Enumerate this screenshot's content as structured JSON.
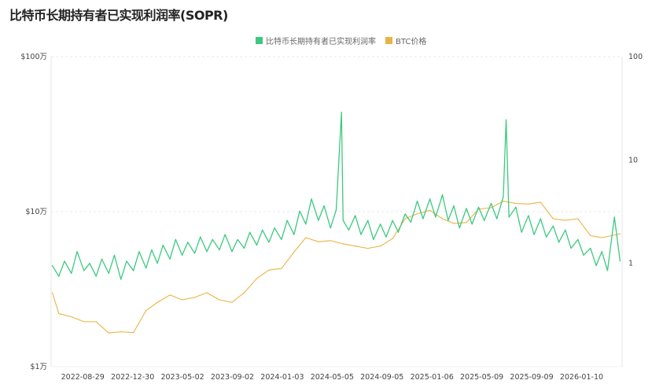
{
  "title": "比特币长期持有者已实现利润率(SOPR)",
  "legend": [
    {
      "label": "比特币长期持有者已实现利润率",
      "color": "#3cc97f"
    },
    {
      "label": "BTC价格",
      "color": "#e9b444"
    }
  ],
  "chart_data": {
    "type": "line",
    "title": "比特币长期持有者已实现利润率(SOPR)",
    "xlim": [
      "2022-06-12",
      "2026-04-20"
    ],
    "x_ticks": [
      "2022-08-29",
      "2022-12-30",
      "2023-05-02",
      "2023-09-02",
      "2024-01-03",
      "2024-05-05",
      "2024-09-05",
      "2025-01-06",
      "2025-05-09",
      "2025-09-09",
      "2026-01-10"
    ],
    "y_left": {
      "scale": "log",
      "range": [
        10000,
        1000000
      ],
      "ticks": [
        {
          "value": 1000000,
          "label": "$100万"
        },
        {
          "value": 100000,
          "label": "$10万"
        },
        {
          "value": 10000,
          "label": "$1万"
        }
      ]
    },
    "y_right": {
      "scale": "log",
      "range": [
        0.1,
        100
      ],
      "ticks": [
        {
          "value": 100,
          "label": "100"
        },
        {
          "value": 10,
          "label": "10"
        },
        {
          "value": 1,
          "label": "1"
        }
      ]
    },
    "grid": "horizontal dashed",
    "legend_position": "top-center",
    "series": [
      {
        "name": "比特币长期持有者已实现利润率",
        "axis": "right",
        "color": "#3cc97f",
        "points": [
          [
            "2022-06-15",
            0.95
          ],
          [
            "2022-07-01",
            0.75
          ],
          [
            "2022-07-15",
            1.05
          ],
          [
            "2022-08-01",
            0.8
          ],
          [
            "2022-08-15",
            1.3
          ],
          [
            "2022-09-01",
            0.85
          ],
          [
            "2022-09-15",
            1.0
          ],
          [
            "2022-10-01",
            0.75
          ],
          [
            "2022-10-15",
            1.1
          ],
          [
            "2022-11-01",
            0.8
          ],
          [
            "2022-11-15",
            1.2
          ],
          [
            "2022-12-01",
            0.7
          ],
          [
            "2022-12-15",
            1.05
          ],
          [
            "2023-01-01",
            0.85
          ],
          [
            "2023-01-15",
            1.3
          ],
          [
            "2023-02-01",
            0.9
          ],
          [
            "2023-02-15",
            1.35
          ],
          [
            "2023-03-01",
            1.0
          ],
          [
            "2023-03-15",
            1.5
          ],
          [
            "2023-04-01",
            1.1
          ],
          [
            "2023-04-15",
            1.7
          ],
          [
            "2023-05-01",
            1.2
          ],
          [
            "2023-05-15",
            1.6
          ],
          [
            "2023-06-01",
            1.25
          ],
          [
            "2023-06-15",
            1.8
          ],
          [
            "2023-07-01",
            1.3
          ],
          [
            "2023-07-15",
            1.7
          ],
          [
            "2023-08-01",
            1.35
          ],
          [
            "2023-08-15",
            1.9
          ],
          [
            "2023-09-01",
            1.3
          ],
          [
            "2023-09-15",
            1.7
          ],
          [
            "2023-10-01",
            1.4
          ],
          [
            "2023-10-15",
            2.0
          ],
          [
            "2023-11-01",
            1.5
          ],
          [
            "2023-11-15",
            2.1
          ],
          [
            "2023-12-01",
            1.6
          ],
          [
            "2023-12-15",
            2.2
          ],
          [
            "2024-01-01",
            1.7
          ],
          [
            "2024-01-15",
            2.6
          ],
          [
            "2024-02-01",
            1.9
          ],
          [
            "2024-02-15",
            3.2
          ],
          [
            "2024-03-01",
            2.4
          ],
          [
            "2024-03-15",
            4.2
          ],
          [
            "2024-04-01",
            2.6
          ],
          [
            "2024-04-15",
            3.6
          ],
          [
            "2024-05-01",
            2.2
          ],
          [
            "2024-05-15",
            3.3
          ],
          [
            "2024-05-28",
            29
          ],
          [
            "2024-06-01",
            2.6
          ],
          [
            "2024-06-15",
            2.1
          ],
          [
            "2024-07-01",
            2.9
          ],
          [
            "2024-07-15",
            1.9
          ],
          [
            "2024-08-01",
            2.6
          ],
          [
            "2024-08-15",
            1.7
          ],
          [
            "2024-09-01",
            2.4
          ],
          [
            "2024-09-15",
            1.8
          ],
          [
            "2024-10-01",
            2.6
          ],
          [
            "2024-10-15",
            2.0
          ],
          [
            "2024-11-01",
            3.0
          ],
          [
            "2024-11-15",
            2.5
          ],
          [
            "2024-12-01",
            4.0
          ],
          [
            "2024-12-15",
            2.7
          ],
          [
            "2025-01-01",
            4.2
          ],
          [
            "2025-01-15",
            2.8
          ],
          [
            "2025-02-01",
            4.6
          ],
          [
            "2025-02-15",
            2.6
          ],
          [
            "2025-03-01",
            3.6
          ],
          [
            "2025-03-15",
            2.2
          ],
          [
            "2025-04-01",
            3.4
          ],
          [
            "2025-04-15",
            2.4
          ],
          [
            "2025-05-01",
            3.5
          ],
          [
            "2025-05-15",
            2.6
          ],
          [
            "2025-06-01",
            3.8
          ],
          [
            "2025-06-15",
            2.7
          ],
          [
            "2025-07-01",
            4.4
          ],
          [
            "2025-07-08",
            24.5
          ],
          [
            "2025-07-15",
            2.8
          ],
          [
            "2025-08-01",
            3.5
          ],
          [
            "2025-08-15",
            2.0
          ],
          [
            "2025-09-01",
            2.9
          ],
          [
            "2025-09-15",
            1.9
          ],
          [
            "2025-10-01",
            2.7
          ],
          [
            "2025-10-15",
            1.8
          ],
          [
            "2025-11-01",
            2.3
          ],
          [
            "2025-11-15",
            1.6
          ],
          [
            "2025-12-01",
            2.1
          ],
          [
            "2025-12-15",
            1.4
          ],
          [
            "2026-01-01",
            1.7
          ],
          [
            "2026-01-15",
            1.2
          ],
          [
            "2026-02-01",
            1.4
          ],
          [
            "2026-02-15",
            0.95
          ],
          [
            "2026-03-01",
            1.3
          ],
          [
            "2026-03-15",
            0.85
          ],
          [
            "2026-04-01",
            2.8
          ],
          [
            "2026-04-15",
            1.05
          ]
        ]
      },
      {
        "name": "BTC价格",
        "axis": "left",
        "color": "#e9b444",
        "points": [
          [
            "2022-06-15",
            30000
          ],
          [
            "2022-07-01",
            22000
          ],
          [
            "2022-08-01",
            21000
          ],
          [
            "2022-09-01",
            19500
          ],
          [
            "2022-10-01",
            19500
          ],
          [
            "2022-11-01",
            16500
          ],
          [
            "2022-12-01",
            16800
          ],
          [
            "2023-01-01",
            16600
          ],
          [
            "2023-02-01",
            23000
          ],
          [
            "2023-03-01",
            26000
          ],
          [
            "2023-04-01",
            29000
          ],
          [
            "2023-05-01",
            27000
          ],
          [
            "2023-06-01",
            28000
          ],
          [
            "2023-07-01",
            30000
          ],
          [
            "2023-08-01",
            27000
          ],
          [
            "2023-09-01",
            26000
          ],
          [
            "2023-10-01",
            30000
          ],
          [
            "2023-11-01",
            37000
          ],
          [
            "2023-12-01",
            42000
          ],
          [
            "2024-01-01",
            43000
          ],
          [
            "2024-02-01",
            55000
          ],
          [
            "2024-03-01",
            68000
          ],
          [
            "2024-04-01",
            64000
          ],
          [
            "2024-05-01",
            65000
          ],
          [
            "2024-06-01",
            62000
          ],
          [
            "2024-07-01",
            60000
          ],
          [
            "2024-08-01",
            58000
          ],
          [
            "2024-09-01",
            60000
          ],
          [
            "2024-10-01",
            67000
          ],
          [
            "2024-11-01",
            90000
          ],
          [
            "2024-12-01",
            97000
          ],
          [
            "2025-01-01",
            102000
          ],
          [
            "2025-02-01",
            90000
          ],
          [
            "2025-03-01",
            84000
          ],
          [
            "2025-04-01",
            85000
          ],
          [
            "2025-05-01",
            104000
          ],
          [
            "2025-06-01",
            106000
          ],
          [
            "2025-07-01",
            117000
          ],
          [
            "2025-08-01",
            113000
          ],
          [
            "2025-09-01",
            112000
          ],
          [
            "2025-10-01",
            115000
          ],
          [
            "2025-11-01",
            90000
          ],
          [
            "2025-12-01",
            88000
          ],
          [
            "2026-01-01",
            90000
          ],
          [
            "2026-02-01",
            70000
          ],
          [
            "2026-03-01",
            68000
          ],
          [
            "2026-04-15",
            72000
          ]
        ]
      }
    ]
  }
}
